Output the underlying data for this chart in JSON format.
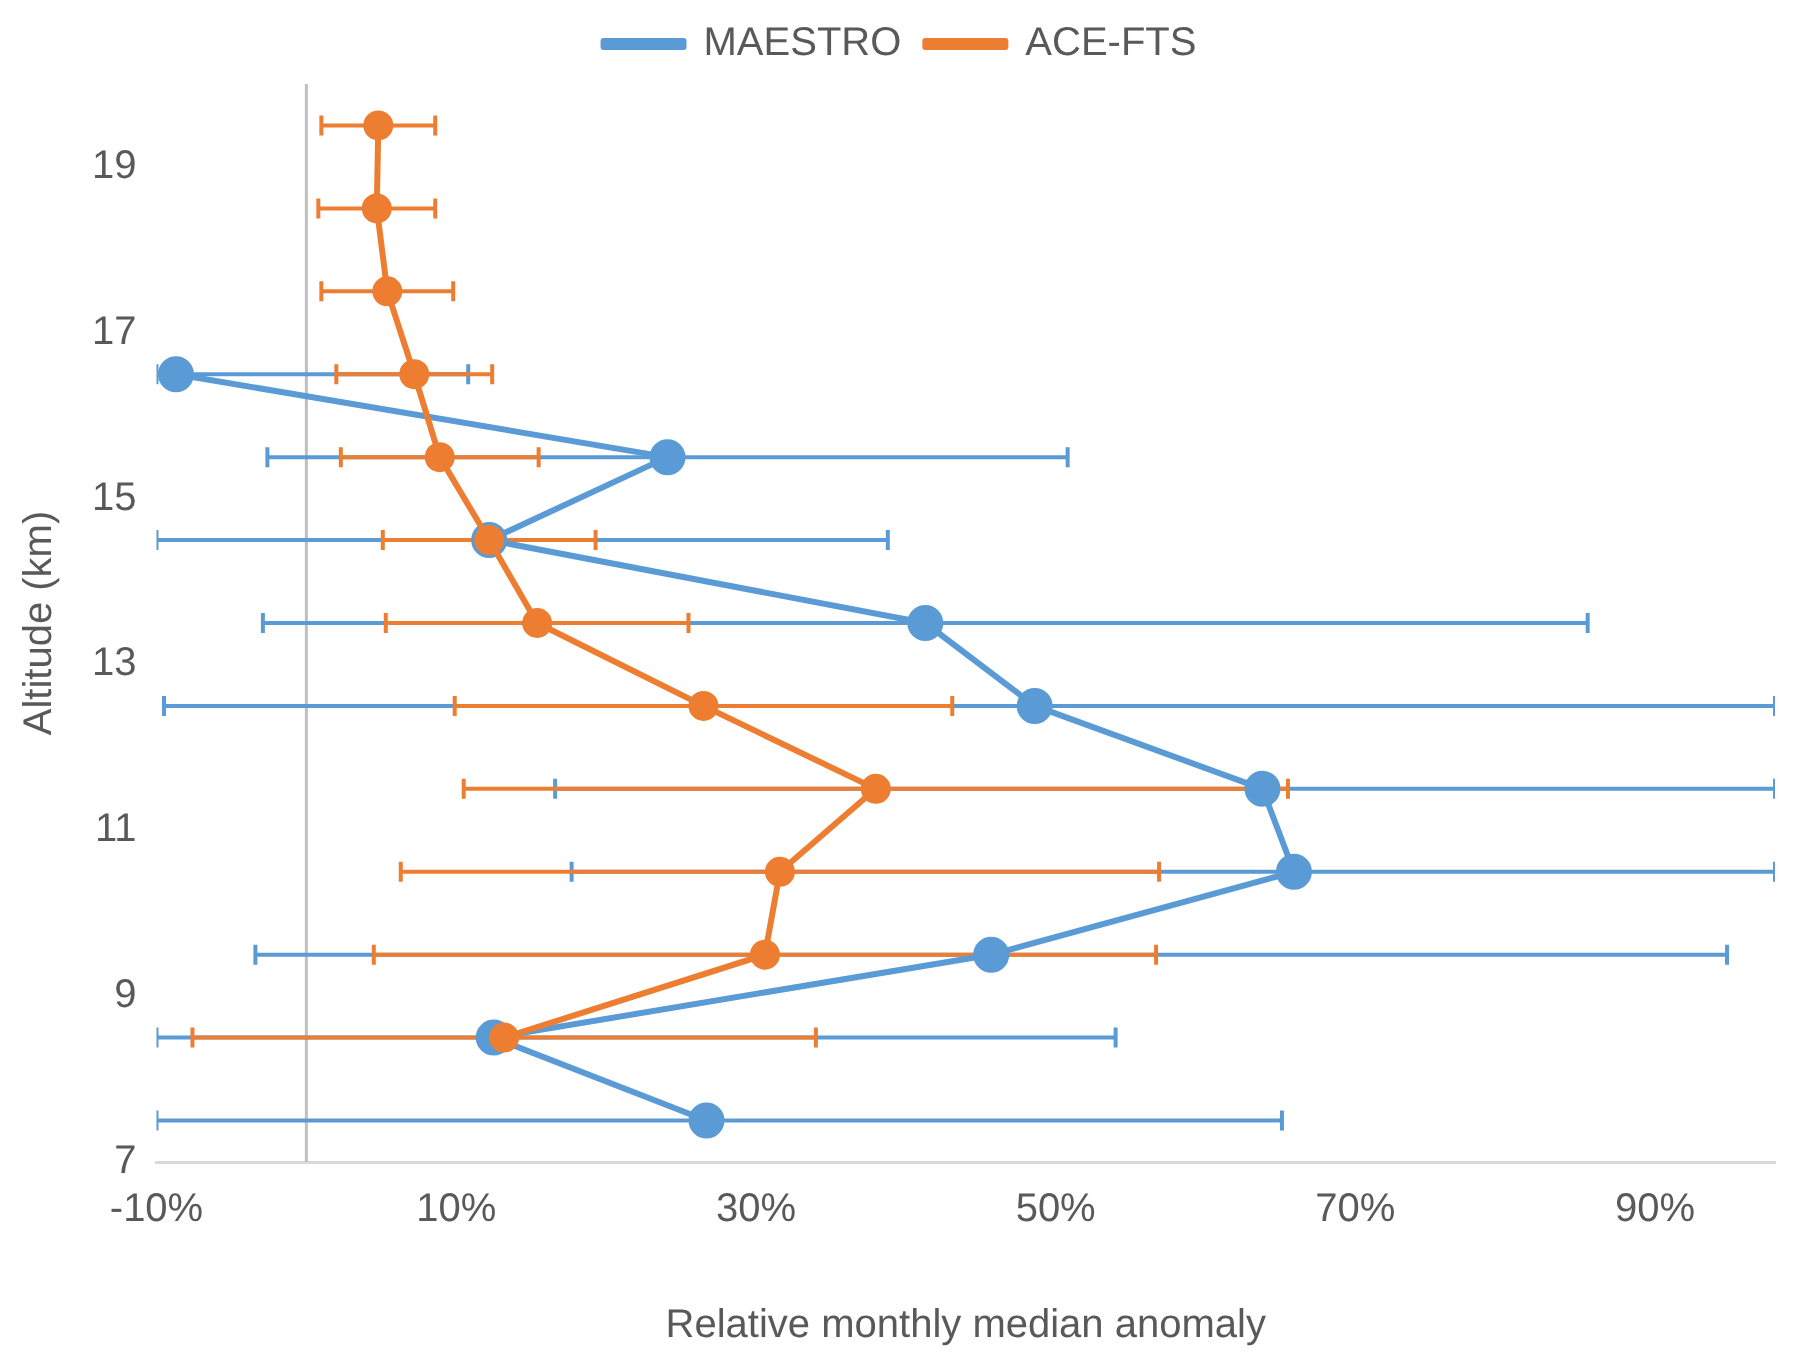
{
  "chart_data": {
    "type": "line",
    "orientation": "horizontal",
    "xlabel": "Relative monthly median anomaly",
    "ylabel": "Altitude (km)",
    "x": [
      19.5,
      18.5,
      17.5,
      16.5,
      15.5,
      14.5,
      13.5,
      12.5,
      11.5,
      10.5,
      9.5,
      8.5,
      7.5
    ],
    "series": [
      {
        "name": "MAESTRO",
        "color": "#5b9bd5",
        "values": [
          null,
          null,
          null,
          -8.7,
          24.1,
          12.2,
          41.3,
          48.6,
          63.8,
          65.9,
          45.7,
          12.5,
          26.7
        ],
        "errors": [
          null,
          null,
          null,
          [
            -10,
            10.8
          ],
          26.7,
          [
            -10,
            38.8
          ],
          44.2,
          [
            -9.5,
            98
          ],
          [
            16.6,
            98
          ],
          [
            17.7,
            98
          ],
          49.1,
          [
            -10,
            54
          ],
          [
            -10,
            65.1
          ]
        ]
      },
      {
        "name": "ACE-FTS",
        "color": "#ed7d31",
        "values": [
          4.8,
          4.7,
          5.4,
          7.2,
          8.9,
          12.2,
          15.4,
          26.5,
          38.0,
          31.6,
          30.6,
          13.2,
          null
        ],
        "errors": [
          3.8,
          3.9,
          4.4,
          5.2,
          6.6,
          7.1,
          10.1,
          16.6,
          27.5,
          25.3,
          26.1,
          20.8,
          null
        ]
      }
    ],
    "xlim": [
      -10,
      98
    ],
    "xticks": [
      {
        "value": -10,
        "label": "-10%"
      },
      {
        "value": 10,
        "label": "10%"
      },
      {
        "value": 30,
        "label": "30%"
      },
      {
        "value": 50,
        "label": "50%"
      },
      {
        "value": 70,
        "label": "70%"
      },
      {
        "value": 90,
        "label": "90%"
      }
    ],
    "ylim": [
      7,
      20
    ],
    "yticks": [
      7,
      9,
      11,
      13,
      15,
      17,
      19
    ],
    "ref_lines": [
      {
        "axis": "x",
        "value": 0,
        "color": "#bfbfbf"
      }
    ],
    "grid": false,
    "legend": "top",
    "marker": "circle",
    "line_style": "solid"
  }
}
